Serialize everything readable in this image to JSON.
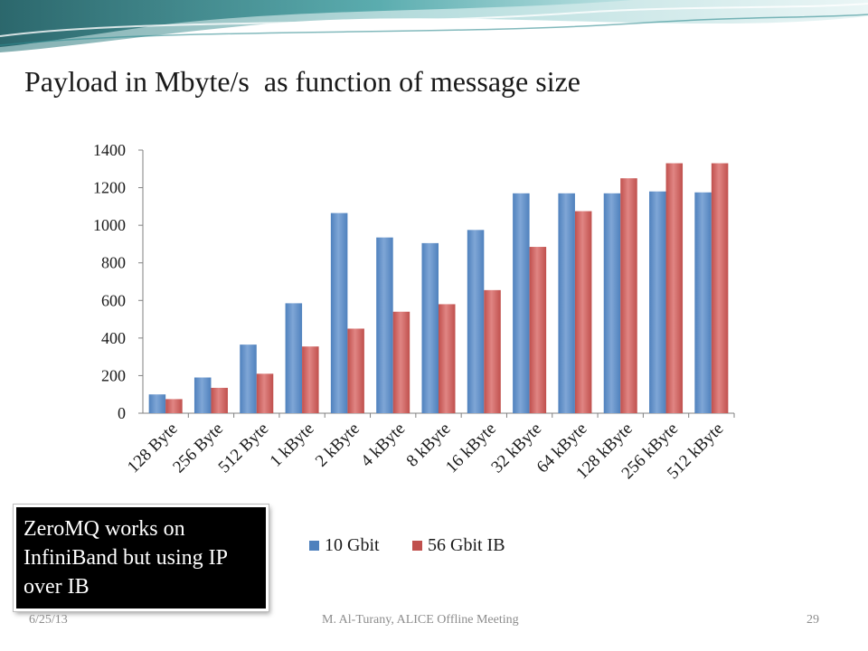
{
  "slide": {
    "title": "Payload in Mbyte/s  as function of message size",
    "callout": "ZeroMQ works on InfiniBand but using IP over IB",
    "footer_date": "6/25/13",
    "footer_center": "M. Al-Turany,  ALICE Offline Meeting",
    "page_number": "29"
  },
  "colors": {
    "series_10gbit": "#4f81bd",
    "series_56gbit": "#c0504d",
    "banner_teal": "#2e8b8f",
    "banner_light": "#cfe9ea"
  },
  "chart_data": {
    "type": "bar",
    "title": "",
    "xlabel": "",
    "ylabel": "",
    "categories": [
      "128 Byte",
      "256 Byte",
      "512 Byte",
      "1 kByte",
      "2 kByte",
      "4 kByte",
      "8 kByte",
      "16 kByte",
      "32 kByte",
      "64 kByte",
      "128 kByte",
      "256 kByte",
      "512 kByte"
    ],
    "series": [
      {
        "name": "10 Gbit",
        "values": [
          100,
          190,
          365,
          585,
          1065,
          935,
          905,
          975,
          1170,
          1170,
          1170,
          1180,
          1175
        ]
      },
      {
        "name": "56 Gbit IB",
        "values": [
          75,
          135,
          210,
          355,
          450,
          540,
          580,
          655,
          885,
          1075,
          1250,
          1330,
          1330
        ]
      }
    ],
    "ylim": [
      0,
      1400
    ],
    "yticks": [
      0,
      200,
      400,
      600,
      800,
      1000,
      1200,
      1400
    ],
    "grid": false,
    "legend_position": "bottom"
  }
}
